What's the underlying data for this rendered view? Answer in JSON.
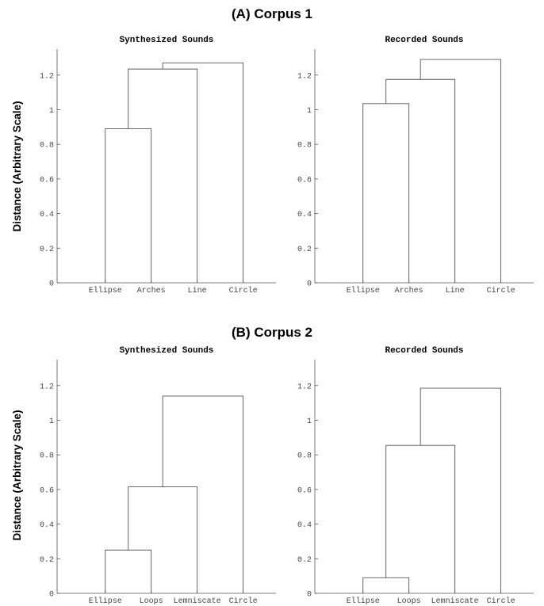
{
  "sections": [
    {
      "title": "(A) Corpus 1",
      "ylabel": "Distance (Arbitrary Scale)",
      "panels": [
        {
          "title": "Synthesized Sounds",
          "chart_data": {
            "type": "dendrogram",
            "leaves": [
              "Ellipse",
              "Arches",
              "Line",
              "Circle"
            ],
            "merges": [
              {
                "left": 0,
                "right": 1,
                "height": 0.89
              },
              {
                "left": "m0",
                "right": 2,
                "height": 1.235
              },
              {
                "left": "m1",
                "right": 3,
                "height": 1.27
              }
            ],
            "ylim": [
              0,
              1.35
            ],
            "yticks": [
              "0",
              "0.2",
              "0.4",
              "0.6",
              "0.8",
              "1",
              "1.2"
            ]
          }
        },
        {
          "title": "Recorded Sounds",
          "chart_data": {
            "type": "dendrogram",
            "leaves": [
              "Ellipse",
              "Arches",
              "Line",
              "Circle"
            ],
            "merges": [
              {
                "left": 0,
                "right": 1,
                "height": 1.035
              },
              {
                "left": "m0",
                "right": 2,
                "height": 1.175
              },
              {
                "left": "m1",
                "right": 3,
                "height": 1.29
              }
            ],
            "ylim": [
              0,
              1.35
            ],
            "yticks": [
              "0",
              "0.2",
              "0.4",
              "0.6",
              "0.8",
              "1",
              "1.2"
            ]
          }
        }
      ]
    },
    {
      "title": "(B) Corpus 2",
      "ylabel": "Distance (Arbitrary Scale)",
      "panels": [
        {
          "title": "Synthesized Sounds",
          "chart_data": {
            "type": "dendrogram",
            "leaves": [
              "Ellipse",
              "Loops",
              "Lemniscate",
              "Circle"
            ],
            "merges": [
              {
                "left": 0,
                "right": 1,
                "height": 0.25
              },
              {
                "left": "m0",
                "right": 2,
                "height": 0.615
              },
              {
                "left": "m1",
                "right": 3,
                "height": 1.14
              }
            ],
            "ylim": [
              0,
              1.35
            ],
            "yticks": [
              "0",
              "0.2",
              "0.4",
              "0.6",
              "0.8",
              "1",
              "1.2"
            ]
          }
        },
        {
          "title": "Recorded Sounds",
          "chart_data": {
            "type": "dendrogram",
            "leaves": [
              "Ellipse",
              "Loops",
              "Lemniscate",
              "Circle"
            ],
            "merges": [
              {
                "left": 0,
                "right": 1,
                "height": 0.09
              },
              {
                "left": "m0",
                "right": 2,
                "height": 0.855
              },
              {
                "left": "m1",
                "right": 3,
                "height": 1.185
              }
            ],
            "ylim": [
              0,
              1.35
            ],
            "yticks": [
              "0",
              "0.2",
              "0.4",
              "0.6",
              "0.8",
              "1",
              "1.2"
            ]
          }
        }
      ]
    }
  ]
}
